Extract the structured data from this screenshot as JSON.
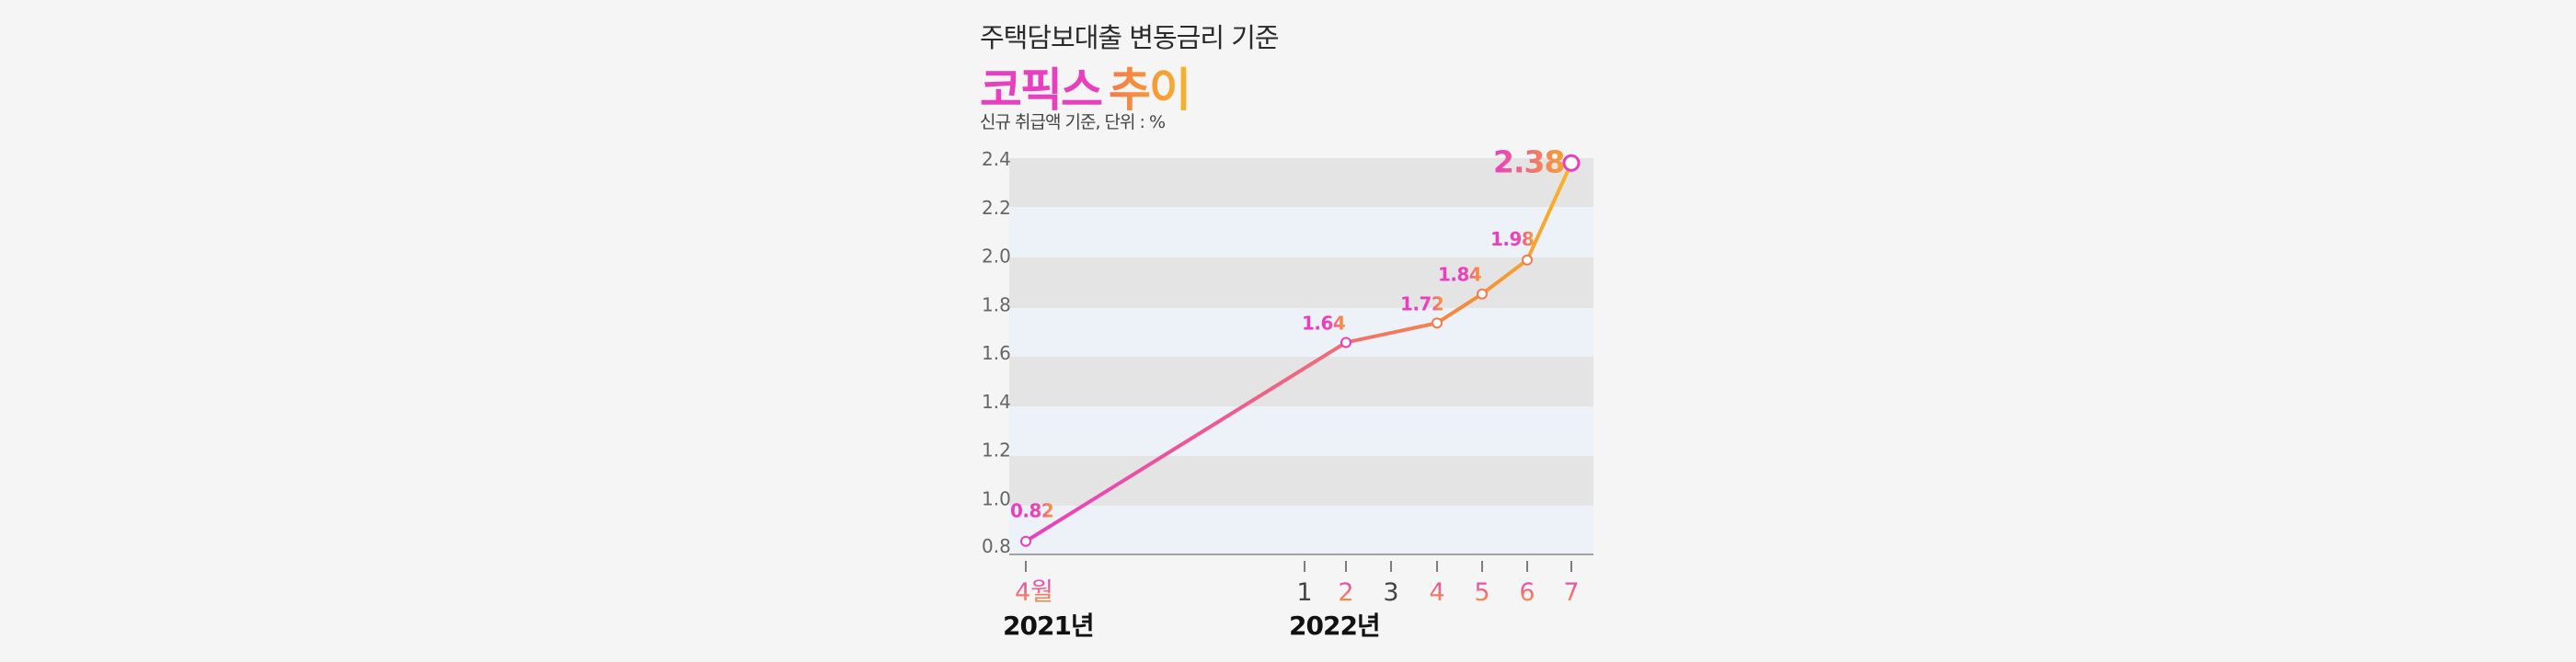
{
  "header": {
    "subtitle": "주택담보대출 변동금리 기준",
    "title_part1": "코픽스",
    "title_part2": "추이",
    "note": "신규 취급액 기준, 단위 : %"
  },
  "colors": {
    "pink": "#e83fbf",
    "orange": "#f47a4a",
    "yellow": "#f7b428",
    "band_dark": "#e4e4e4",
    "band_light": "#edf1f8"
  },
  "chart_data": {
    "type": "line",
    "title": "",
    "xlabel": "",
    "ylabel": "",
    "ylim": [
      0.8,
      2.4
    ],
    "yticks": [
      "0.8",
      "1.0",
      "1.2",
      "1.4",
      "1.6",
      "1.8",
      "2.0",
      "2.2",
      "2.4"
    ],
    "x_ticks": [
      {
        "x": "2021-04",
        "label": "4월"
      },
      {
        "x": "2022-01",
        "label": "1"
      },
      {
        "x": "2022-02",
        "label": "2"
      },
      {
        "x": "2022-03",
        "label": "3"
      },
      {
        "x": "2022-04",
        "label": "4"
      },
      {
        "x": "2022-05",
        "label": "5"
      },
      {
        "x": "2022-06",
        "label": "6"
      },
      {
        "x": "2022-07",
        "label": "7"
      }
    ],
    "year_labels": [
      {
        "x": "2021-04",
        "label": "2021년"
      },
      {
        "x": "2022-01",
        "label": "2022년"
      }
    ],
    "series": [
      {
        "points": [
          {
            "x": "2021-04",
            "y": 0.82,
            "label": "0.82"
          },
          {
            "x": "2022-02",
            "y": 1.64,
            "label": "1.64"
          },
          {
            "x": "2022-04",
            "y": 1.72,
            "label": "1.72"
          },
          {
            "x": "2022-05",
            "y": 1.84,
            "label": "1.84"
          },
          {
            "x": "2022-06",
            "y": 1.98,
            "label": "1.98"
          },
          {
            "x": "2022-07",
            "y": 2.38,
            "label": "2.38"
          }
        ]
      }
    ],
    "grid": "alternating horizontal bands"
  }
}
